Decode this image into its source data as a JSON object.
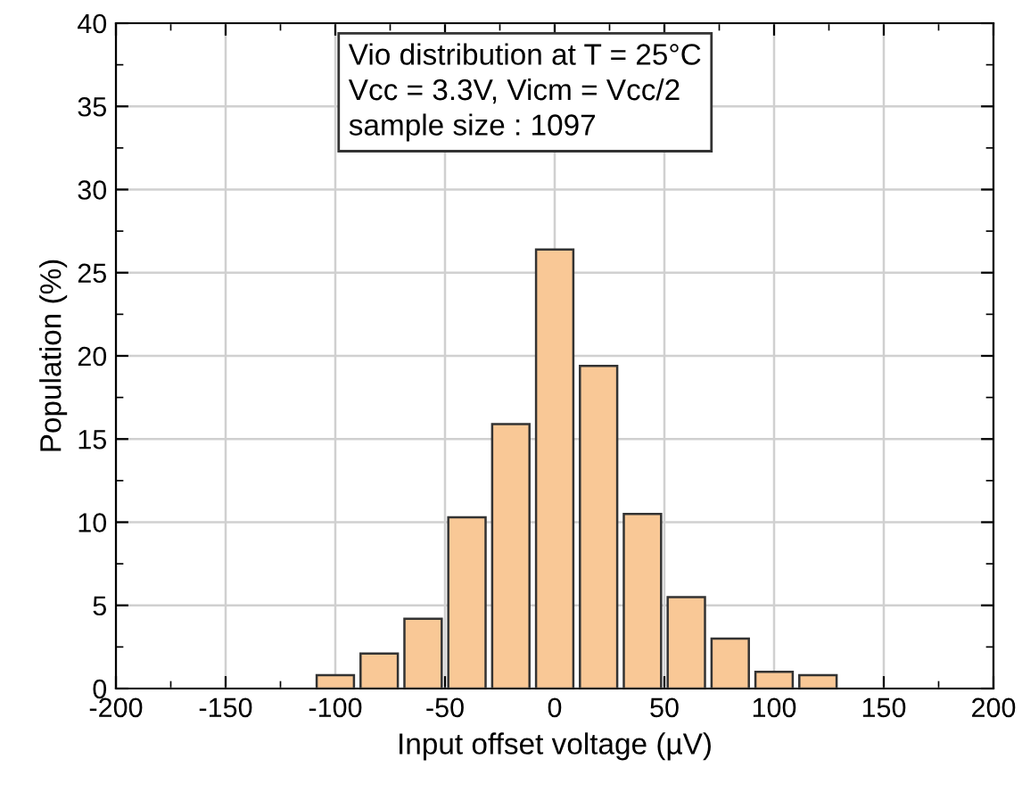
{
  "chart_data": {
    "type": "histogram",
    "xlabel": "Input offset voltage (µV)",
    "ylabel": "Population (%)",
    "bins": [
      -110,
      -90,
      -70,
      -50,
      -30,
      -10,
      10,
      30,
      50,
      70,
      90,
      110,
      130
    ],
    "values": [
      0.8,
      2.1,
      4.2,
      10.3,
      15.9,
      26.4,
      19.4,
      10.5,
      5.5,
      3.0,
      1.0,
      0.8
    ],
    "color": "#f9c896",
    "xlim": [
      -200,
      200
    ],
    "xticks": [
      -200,
      -150,
      -100,
      -50,
      0,
      50,
      100,
      150,
      200
    ],
    "ylim": [
      0,
      40
    ],
    "yticks": [
      0,
      5,
      10,
      15,
      20,
      25,
      30,
      35,
      40
    ],
    "grid": true,
    "annotations": [
      "Vio distribution at T = 25°C\nVcc = 3.3V, Vicm = Vcc/2\nsample size : 1097"
    ]
  }
}
